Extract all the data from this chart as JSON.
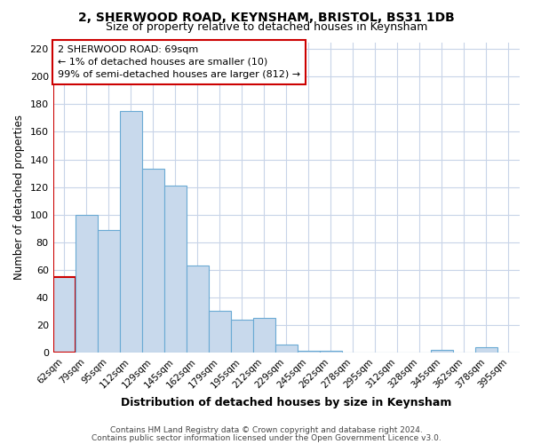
{
  "title_line1": "2, SHERWOOD ROAD, KEYNSHAM, BRISTOL, BS31 1DB",
  "title_line2": "Size of property relative to detached houses in Keynsham",
  "xlabel": "Distribution of detached houses by size in Keynsham",
  "ylabel": "Number of detached properties",
  "bar_labels": [
    "62sqm",
    "79sqm",
    "95sqm",
    "112sqm",
    "129sqm",
    "145sqm",
    "162sqm",
    "179sqm",
    "195sqm",
    "212sqm",
    "229sqm",
    "245sqm",
    "262sqm",
    "278sqm",
    "295sqm",
    "312sqm",
    "328sqm",
    "345sqm",
    "362sqm",
    "378sqm",
    "395sqm"
  ],
  "bar_values": [
    55,
    100,
    89,
    175,
    133,
    121,
    63,
    30,
    24,
    25,
    6,
    1,
    1,
    0,
    0,
    0,
    0,
    2,
    0,
    4,
    0
  ],
  "bar_color": "#c8d9ec",
  "bar_edge_color": "#6aaad4",
  "annotation_line1": "2 SHERWOOD ROAD: 69sqm",
  "annotation_line2": "← 1% of detached houses are smaller (10)",
  "annotation_line3": "99% of semi-detached houses are larger (812) →",
  "annotation_box_facecolor": "#ffffff",
  "annotation_box_edgecolor": "#cc0000",
  "highlight_bar_edgecolor": "#cc0000",
  "ylim": [
    0,
    225
  ],
  "yticks": [
    0,
    20,
    40,
    60,
    80,
    100,
    120,
    140,
    160,
    180,
    200,
    220
  ],
  "footer_line1": "Contains HM Land Registry data © Crown copyright and database right 2024.",
  "footer_line2": "Contains public sector information licensed under the Open Government Licence v3.0.",
  "bg_color": "#ffffff",
  "grid_color": "#c8d4e8"
}
